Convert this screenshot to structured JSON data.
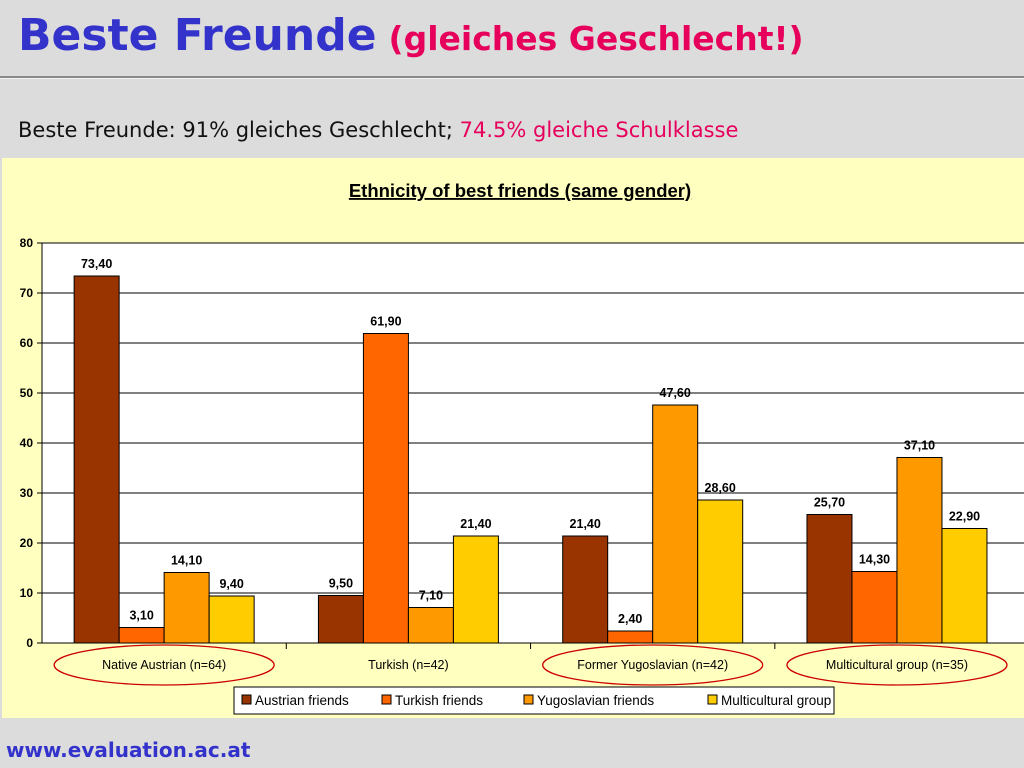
{
  "slide": {
    "title_main": "Beste Freunde",
    "title_sub": "(gleiches Geschlecht!)",
    "subtitle_prefix": "Beste Freunde: 91% gleiches Geschlecht;",
    "subtitle_accent": "74.5% gleiche Schulklasse",
    "footer": "www.evaluation.ac.at"
  },
  "chart_data": {
    "type": "bar",
    "title": "Ethnicity of best friends (same gender)",
    "categories": [
      "Native Austrian (n=64)",
      "Turkish (n=42)",
      "Former Yugoslavian (n=42)",
      "Multicultural group (n=35)"
    ],
    "highlighted_categories": [
      0,
      2,
      3
    ],
    "series": [
      {
        "name": "Austrian friends",
        "color": "#993300",
        "values": [
          73.4,
          9.5,
          21.4,
          25.7
        ],
        "labels": [
          "73,40",
          "9,50",
          "21,40",
          "25,70"
        ]
      },
      {
        "name": "Turkish friends",
        "color": "#ff6600",
        "values": [
          3.1,
          61.9,
          2.4,
          14.3
        ],
        "labels": [
          "3,10",
          "61,90",
          "2,40",
          "14,30"
        ]
      },
      {
        "name": "Yugoslavian friends",
        "color": "#ff9900",
        "values": [
          14.1,
          7.1,
          47.6,
          37.1
        ],
        "labels": [
          "14,10",
          "7,10",
          "47,60",
          "37,10"
        ]
      },
      {
        "name": "Multicultural group",
        "color": "#ffcc00",
        "values": [
          9.4,
          21.4,
          28.6,
          22.9
        ],
        "labels": [
          "9,40",
          "21,40",
          "28,60",
          "22,90"
        ]
      }
    ],
    "ylim": [
      0,
      80
    ],
    "yticks": [
      "0",
      "10",
      "20",
      "30",
      "40",
      "50",
      "60",
      "70",
      "80"
    ],
    "grid": true,
    "legend": "bottom",
    "highlight_color": "#cc0000"
  }
}
